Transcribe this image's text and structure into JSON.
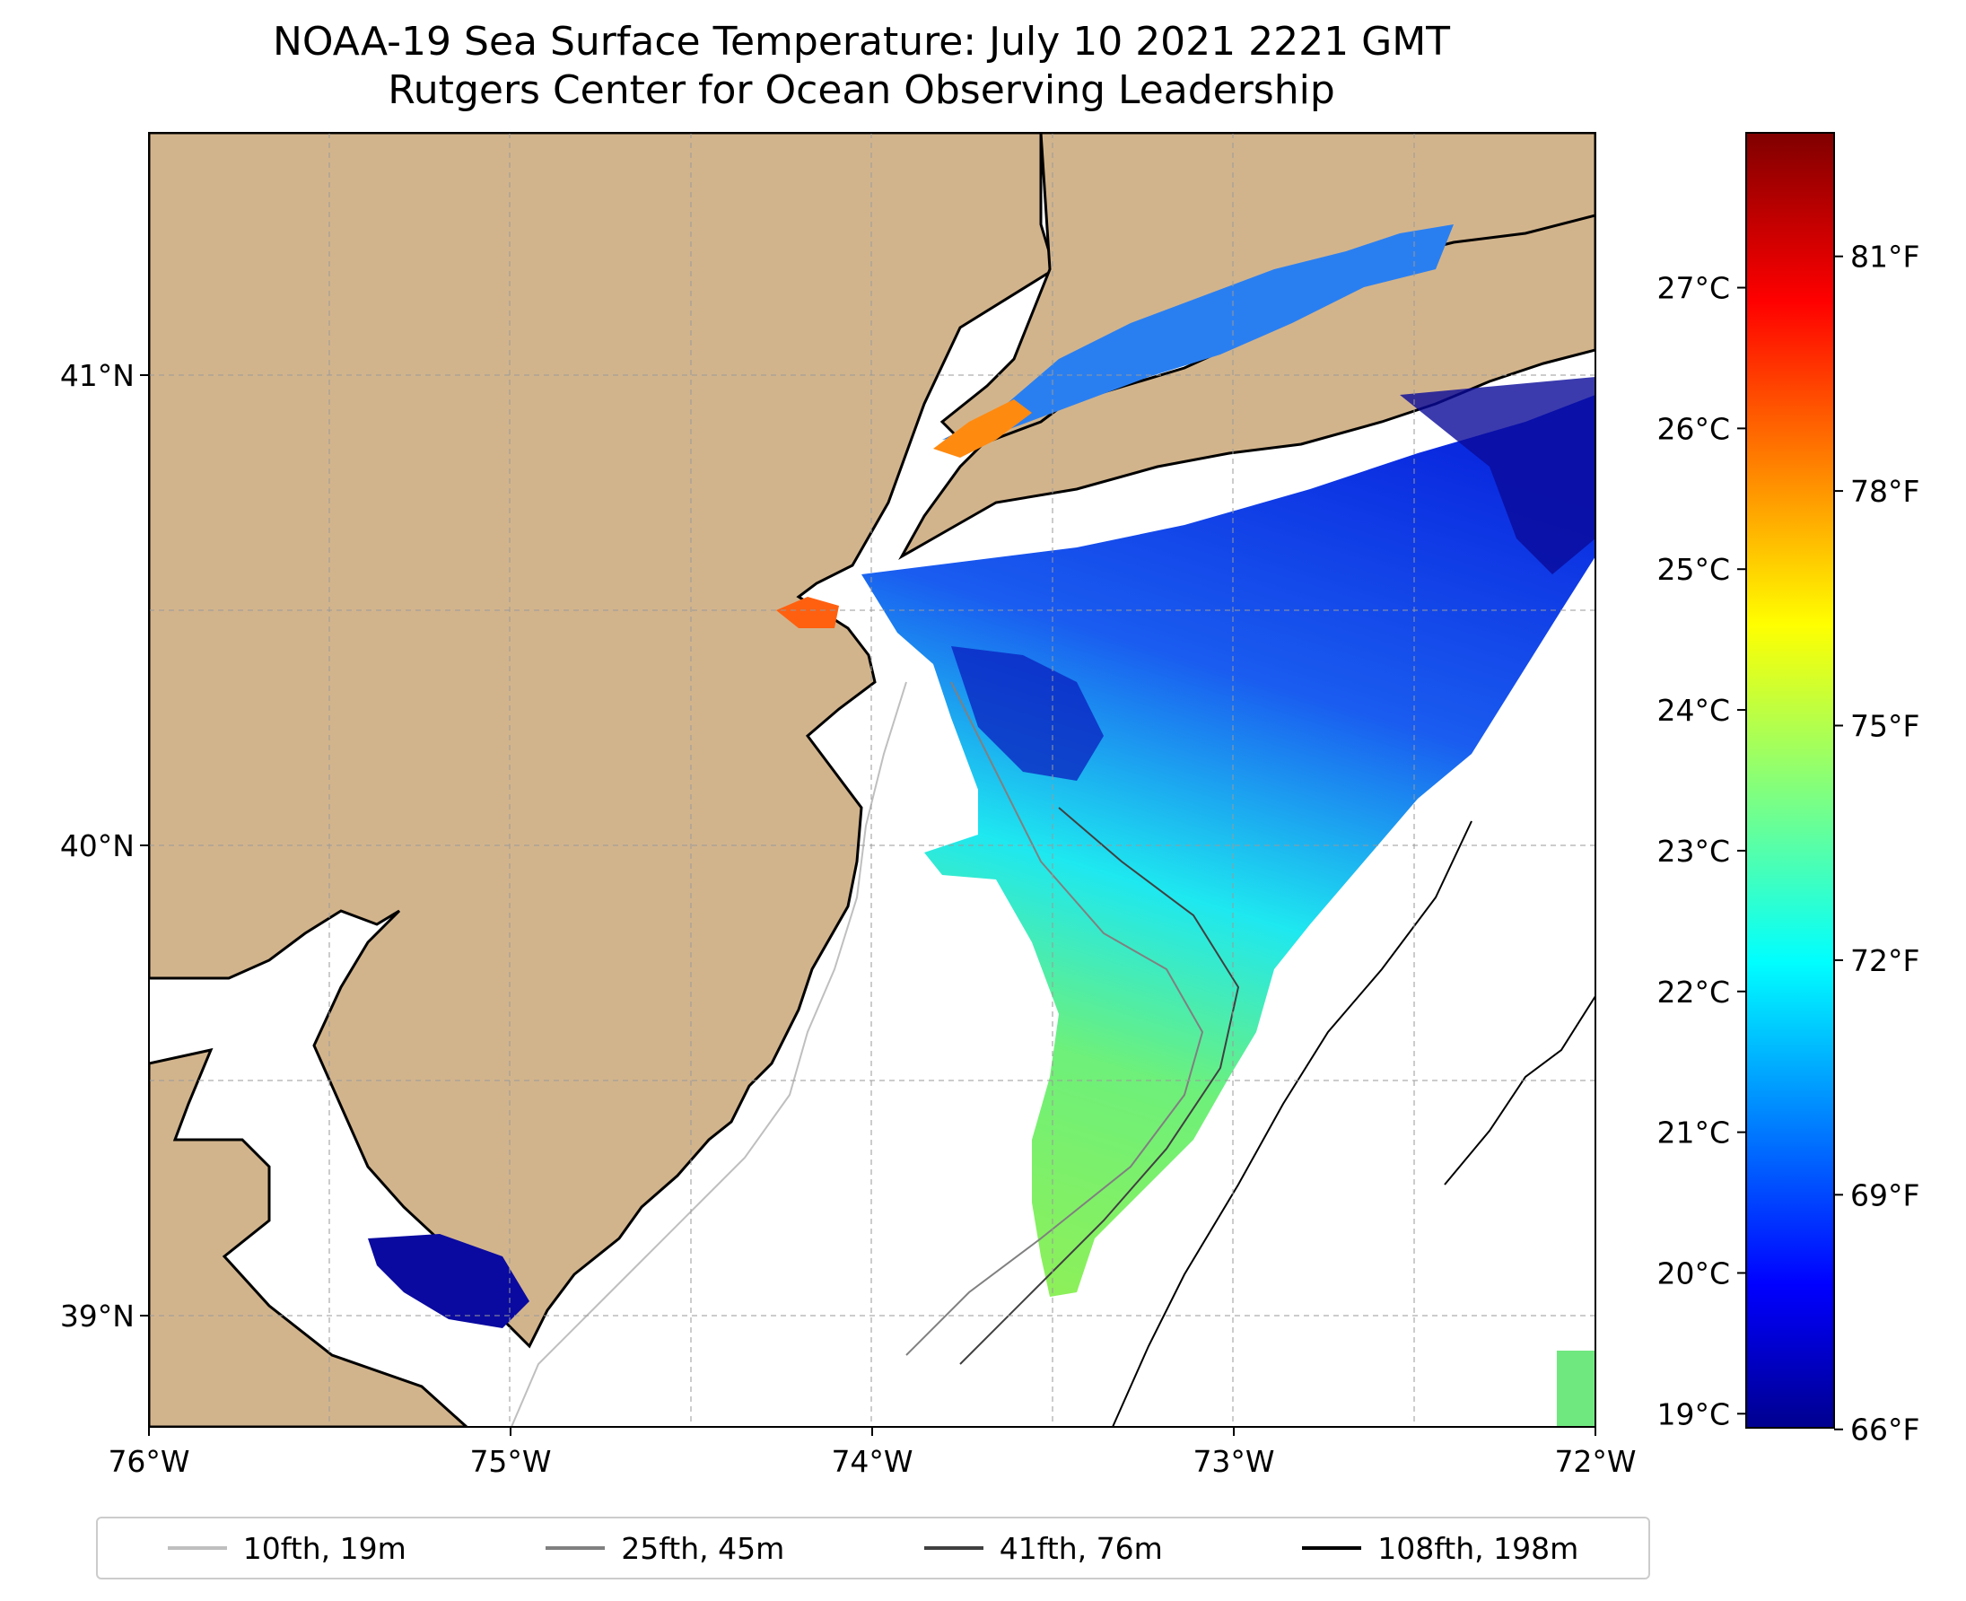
{
  "title": {
    "line1": "NOAA-19 Sea Surface Temperature: July 10 2021 2221 GMT",
    "line2": "Rutgers Center for Ocean Observing Leadership"
  },
  "map": {
    "lon_ticks": [
      "76°W",
      "75°W",
      "74°W",
      "73°W",
      "72°W"
    ],
    "lat_ticks": [
      "41°N",
      "40°N",
      "39°N"
    ],
    "extent": {
      "lon": [
        -76,
        -72
      ],
      "lat": [
        38.75,
        41.5
      ]
    },
    "land_color": "#d2b48c",
    "water_color": "#ffffff",
    "grid": true
  },
  "colorbar": {
    "celsius_ticks": [
      "19°C",
      "20°C",
      "21°C",
      "22°C",
      "23°C",
      "24°C",
      "25°C",
      "26°C",
      "27°C"
    ],
    "fahrenheit_ticks": [
      "66°F",
      "69°F",
      "72°F",
      "75°F",
      "78°F",
      "81°F"
    ],
    "colormap": "jet",
    "range_c": [
      18.9,
      28.1
    ]
  },
  "legend": {
    "items": [
      {
        "label": "10fth, 19m",
        "color": "#bfbfbf"
      },
      {
        "label": "25fth, 45m",
        "color": "#808080"
      },
      {
        "label": "41fth, 76m",
        "color": "#404040"
      },
      {
        "label": "108fth, 198m",
        "color": "#000000"
      }
    ]
  }
}
